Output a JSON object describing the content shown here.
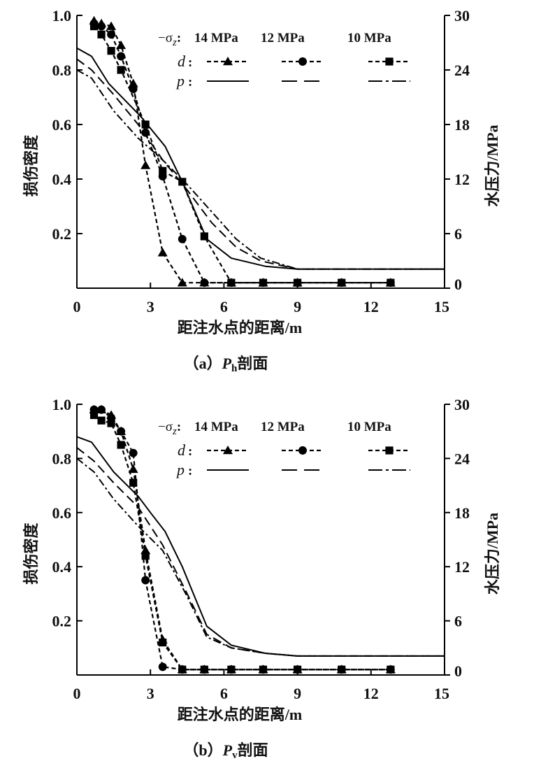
{
  "chart_data": [
    {
      "type": "line",
      "caption_prefix": "（a）",
      "caption_var": "P",
      "caption_sub": "h",
      "caption_suffix": "剖面",
      "xlabel": "距注水点的距离/m",
      "ylabel": "损伤密度",
      "y2label": "水压力/MPa",
      "xlim": [
        0,
        15
      ],
      "ylim": [
        0,
        1.0
      ],
      "y2lim": [
        0,
        30
      ],
      "xticks": [
        "0",
        "3",
        "6",
        "9",
        "12",
        "15"
      ],
      "yticks": [
        "0.2",
        "0.4",
        "0.6",
        "0.8",
        "1.0"
      ],
      "y2ticks": [
        "0",
        "6",
        "12",
        "18",
        "24",
        "30"
      ],
      "grid": false,
      "legend_placement": "top-right",
      "legend": {
        "sigma": "−σ",
        "sigma_sub": "z",
        "colon": ":",
        "d": "d",
        "p": "p",
        "levels": [
          "14 MPa",
          "12 MPa",
          "10 MPa"
        ]
      },
      "damage_series": [
        {
          "name": "14 MPa",
          "marker": "triangle",
          "x": [
            0.7,
            1.0,
            1.4,
            1.8,
            2.3,
            2.8,
            3.5,
            4.3,
            5.2,
            6.3,
            7.6,
            9.0,
            10.8,
            12.8
          ],
          "y": [
            0.98,
            0.97,
            0.96,
            0.89,
            0.75,
            0.45,
            0.13,
            0.02,
            0.02,
            0.02,
            0.02,
            0.02,
            0.02,
            0.02
          ]
        },
        {
          "name": "12 MPa",
          "marker": "circle",
          "x": [
            0.7,
            1.0,
            1.4,
            1.8,
            2.3,
            2.8,
            3.5,
            4.3,
            5.2,
            6.3,
            7.6,
            9.0,
            10.8,
            12.8
          ],
          "y": [
            0.97,
            0.96,
            0.93,
            0.85,
            0.73,
            0.57,
            0.41,
            0.18,
            0.02,
            0.02,
            0.02,
            0.02,
            0.02,
            0.02
          ]
        },
        {
          "name": "10 MPa",
          "marker": "square",
          "x": [
            0.7,
            1.0,
            1.4,
            1.8,
            2.8,
            3.5,
            4.3,
            5.2,
            6.3,
            7.6,
            9.0,
            10.8,
            12.8
          ],
          "y": [
            0.96,
            0.93,
            0.87,
            0.8,
            0.6,
            0.43,
            0.39,
            0.19,
            0.02,
            0.02,
            0.02,
            0.02,
            0.02
          ]
        }
      ],
      "pressure_series": [
        {
          "name": "14 MPa",
          "style": "solid",
          "x": [
            0,
            0.6,
            1.3,
            2.6,
            3.6,
            4.3,
            5.3,
            6.3,
            7.7,
            9.0,
            15
          ],
          "y": [
            26.4,
            25.5,
            22.5,
            18.9,
            15.6,
            11.7,
            5.4,
            3.3,
            2.4,
            2.1,
            2.1
          ]
        },
        {
          "name": "12 MPa",
          "style": "dashed",
          "x": [
            0,
            0.6,
            1.5,
            2.5,
            3.5,
            4.5,
            5.5,
            6.5,
            7.5,
            9.0,
            15
          ],
          "y": [
            25.2,
            24.0,
            21.3,
            18.0,
            14.1,
            10.8,
            7.2,
            4.5,
            3.0,
            2.1,
            2.1
          ]
        },
        {
          "name": "10 MPa",
          "style": "dash-dot",
          "x": [
            0,
            0.6,
            1.5,
            2.5,
            3.5,
            4.5,
            5.5,
            6.5,
            7.5,
            9.0,
            15
          ],
          "y": [
            24.0,
            23.1,
            19.5,
            16.5,
            14.1,
            11.4,
            8.4,
            5.4,
            3.3,
            2.1,
            2.1
          ]
        }
      ]
    },
    {
      "type": "line",
      "caption_prefix": "（b）",
      "caption_var": "P",
      "caption_sub": "v",
      "caption_suffix": "剖面",
      "xlabel": "距注水点的距离/m",
      "ylabel": "损伤密度",
      "y2label": "水压力/MPa",
      "xlim": [
        0,
        15
      ],
      "ylim": [
        0,
        1.0
      ],
      "y2lim": [
        0,
        30
      ],
      "xticks": [
        "0",
        "3",
        "6",
        "9",
        "12",
        "15"
      ],
      "yticks": [
        "0.2",
        "0.4",
        "0.6",
        "0.8",
        "1.0"
      ],
      "y2ticks": [
        "0",
        "6",
        "12",
        "18",
        "24",
        "30"
      ],
      "grid": false,
      "legend_placement": "top-right",
      "legend": {
        "sigma": "−σ",
        "sigma_sub": "z",
        "colon": ":",
        "d": "d",
        "p": "p",
        "levels": [
          "14 MPa",
          "12 MPa",
          "10 MPa"
        ]
      },
      "damage_series": [
        {
          "name": "14 MPa",
          "marker": "triangle",
          "x": [
            0.7,
            1.0,
            1.4,
            1.8,
            2.3,
            2.8,
            3.5,
            4.3,
            5.2,
            6.3,
            7.6,
            9.0,
            10.8,
            12.8
          ],
          "y": [
            0.98,
            0.98,
            0.96,
            0.9,
            0.76,
            0.46,
            0.13,
            0.02,
            0.02,
            0.02,
            0.02,
            0.02,
            0.02,
            0.02
          ]
        },
        {
          "name": "12 MPa",
          "marker": "circle",
          "x": [
            0.7,
            1.0,
            1.4,
            1.8,
            2.3,
            2.8,
            3.5,
            4.3,
            5.2,
            6.3,
            7.6,
            9.0,
            10.8,
            12.8
          ],
          "y": [
            0.98,
            0.98,
            0.95,
            0.9,
            0.82,
            0.35,
            0.03,
            0.02,
            0.02,
            0.02,
            0.02,
            0.02,
            0.02,
            0.02
          ]
        },
        {
          "name": "10 MPa",
          "marker": "square",
          "x": [
            0.7,
            1.0,
            1.4,
            1.8,
            2.3,
            2.8,
            3.5,
            4.3,
            5.2,
            6.3,
            7.6,
            9.0,
            10.8,
            12.8
          ],
          "y": [
            0.96,
            0.94,
            0.93,
            0.85,
            0.71,
            0.44,
            0.12,
            0.02,
            0.02,
            0.02,
            0.02,
            0.02,
            0.02,
            0.02
          ]
        }
      ],
      "pressure_series": [
        {
          "name": "14 MPa",
          "style": "solid",
          "x": [
            0,
            0.6,
            1.5,
            2.5,
            3.0,
            3.6,
            4.3,
            5.3,
            6.3,
            7.7,
            9.0,
            15
          ],
          "y": [
            26.4,
            25.8,
            22.5,
            19.8,
            18.0,
            15.9,
            12.0,
            5.4,
            3.3,
            2.4,
            2.1,
            2.1
          ]
        },
        {
          "name": "12 MPa",
          "style": "dashed",
          "x": [
            0,
            0.7,
            1.5,
            2.5,
            3.5,
            4.5,
            5.3,
            6.3,
            7.7,
            9.0,
            15
          ],
          "y": [
            25.2,
            23.7,
            21.3,
            18.6,
            14.4,
            9.0,
            4.5,
            3.0,
            2.4,
            2.1,
            2.1
          ]
        },
        {
          "name": "10 MPa",
          "style": "dash-dot",
          "x": [
            0,
            0.7,
            1.5,
            2.5,
            3.5,
            4.5,
            5.3,
            6.3,
            7.7,
            9.0,
            15
          ],
          "y": [
            24.0,
            22.5,
            19.5,
            16.5,
            13.8,
            8.7,
            4.2,
            3.0,
            2.4,
            2.1,
            2.1
          ]
        }
      ]
    }
  ]
}
